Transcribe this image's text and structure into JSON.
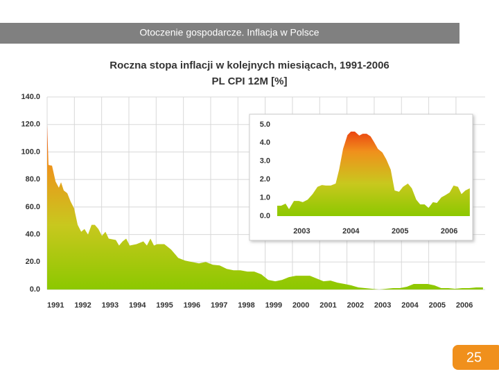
{
  "header": {
    "title": "Otoczenie gospodarcze. Inflacja w Polsce"
  },
  "slide_number": 25,
  "chart_data": [
    {
      "type": "area",
      "title": "Roczna stopa inflacji w kolejnych miesiącach, 1991-2006",
      "subtitle": "PL CPI 12M [%]",
      "x": [
        1991.0,
        1991.05,
        1991.18,
        1991.31,
        1991.43,
        1991.51,
        1991.61,
        1991.74,
        1991.86,
        1991.99,
        1992.12,
        1992.25,
        1992.37,
        1992.5,
        1992.63,
        1992.75,
        1992.88,
        1993.01,
        1993.14,
        1993.26,
        1993.52,
        1993.64,
        1993.77,
        1993.9,
        1994.03,
        1994.28,
        1994.53,
        1994.66,
        1994.79,
        1994.92,
        1995.04,
        1995.3,
        1995.55,
        1995.81,
        1996.06,
        1996.31,
        1996.57,
        1996.82,
        1997.08,
        1997.33,
        1997.59,
        1997.84,
        1998.09,
        1998.35,
        1998.6,
        1998.86,
        1999.11,
        1999.37,
        1999.62,
        1999.87,
        2000.13,
        2000.38,
        2000.64,
        2000.89,
        2001.14,
        2001.4,
        2001.65,
        2001.91,
        2002.16,
        2002.42,
        2002.67,
        2002.92,
        2003.18,
        2003.43,
        2003.69,
        2003.94,
        2004.2,
        2004.45,
        2004.7,
        2004.96,
        2005.21,
        2005.46,
        2005.72,
        2005.97,
        2006.23,
        2006.48,
        2006.74,
        2006.99
      ],
      "values": [
        120,
        90.6,
        90,
        78.5,
        74,
        78,
        72,
        70,
        64,
        59,
        47,
        42,
        44,
        40,
        47,
        47,
        44,
        39,
        42,
        37,
        36,
        32,
        35,
        37,
        32,
        33,
        35,
        32,
        37,
        32,
        33,
        33,
        29,
        23,
        21,
        20,
        19,
        20,
        18,
        17.5,
        15,
        14,
        14,
        13,
        13,
        11,
        7,
        6,
        7,
        9,
        10,
        10,
        10,
        8,
        6,
        6.5,
        5,
        4,
        3,
        1.5,
        1,
        0.5,
        0,
        0.5,
        1,
        1,
        2,
        4,
        4,
        4,
        3,
        1,
        1,
        0.5,
        1,
        1,
        1.5,
        1.5
      ],
      "gradient": [
        "#e8160a",
        "#f0901c",
        "#c8c81e",
        "#8cc800"
      ],
      "xlim": [
        1991,
        2007.07
      ],
      "xticks": [
        1991,
        1992,
        1993,
        1994,
        1995,
        1996,
        1997,
        1998,
        1999,
        2000,
        2001,
        2002,
        2003,
        2004,
        2005,
        2006
      ],
      "ylim": [
        0,
        140
      ],
      "yticks": [
        {
          "value": 0,
          "label": "0.0"
        },
        {
          "value": 20,
          "label": "20.0"
        },
        {
          "value": 40,
          "label": "40.0"
        },
        {
          "value": 60,
          "label": "60.0"
        },
        {
          "value": 80,
          "label": "80.0"
        },
        {
          "value": 100,
          "label": "100.0"
        },
        {
          "value": 120,
          "label": "120.0"
        },
        {
          "value": 140,
          "label": "140.0"
        }
      ],
      "grid": true
    },
    {
      "type": "area",
      "x": [
        2003.0,
        2003.08,
        2003.17,
        2003.24,
        2003.34,
        2003.44,
        2003.52,
        2003.62,
        2003.72,
        2003.82,
        2003.91,
        2003.99,
        2004.09,
        2004.19,
        2004.26,
        2004.34,
        2004.43,
        2004.5,
        2004.58,
        2004.67,
        2004.74,
        2004.82,
        2004.9,
        2004.97,
        2005.05,
        2005.14,
        2005.22,
        2005.31,
        2005.39,
        2005.48,
        2005.56,
        2005.66,
        2005.74,
        2005.83,
        2005.91,
        2006.0,
        2006.08,
        2006.17,
        2006.25,
        2006.34,
        2006.42,
        2006.51,
        2006.59,
        2006.68,
        2006.75,
        2006.83,
        2006.92
      ],
      "values": [
        0.57,
        0.57,
        0.68,
        0.38,
        0.83,
        0.83,
        0.76,
        0.9,
        1.2,
        1.6,
        1.7,
        1.67,
        1.67,
        1.78,
        2.54,
        3.67,
        4.43,
        4.62,
        4.62,
        4.4,
        4.5,
        4.5,
        4.36,
        4.05,
        3.67,
        3.48,
        3.1,
        2.54,
        1.4,
        1.33,
        1.6,
        1.78,
        1.52,
        0.9,
        0.64,
        0.64,
        0.45,
        0.76,
        0.72,
        1.02,
        1.14,
        1.29,
        1.67,
        1.6,
        1.2,
        1.4,
        1.52
      ],
      "gradient": [
        "#e8160a",
        "#f0901c",
        "#c8c81e",
        "#8cc800"
      ],
      "xlim": [
        2003,
        2006.95
      ],
      "xticks": [
        {
          "value": 2003.5,
          "label": "2003"
        },
        {
          "value": 2004.5,
          "label": "2004"
        },
        {
          "value": 2005.5,
          "label": "2005"
        },
        {
          "value": 2006.5,
          "label": "2006"
        }
      ],
      "ylim": [
        0,
        5.3
      ],
      "yticks": [
        {
          "value": 0,
          "label": "0.0"
        },
        {
          "value": 1,
          "label": "1.0"
        },
        {
          "value": 2,
          "label": "2.0"
        },
        {
          "value": 3,
          "label": "3.0"
        },
        {
          "value": 4,
          "label": "4.0"
        },
        {
          "value": 5,
          "label": "5.0"
        }
      ],
      "grid": false
    }
  ]
}
